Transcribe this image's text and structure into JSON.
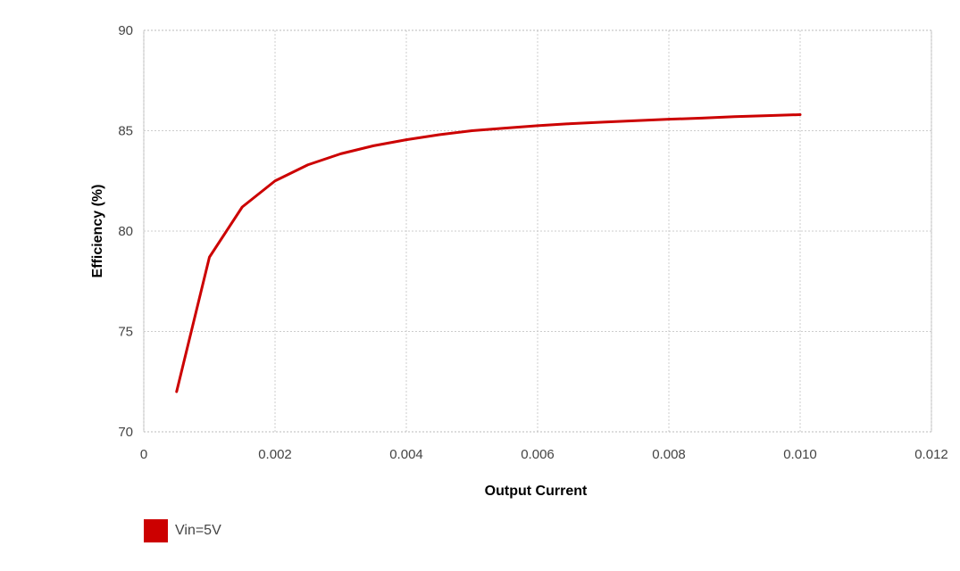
{
  "chart_data": {
    "type": "line",
    "title": "",
    "xlabel": "Output Current",
    "ylabel": "Efficiency (%)",
    "xlim": [
      0,
      0.012
    ],
    "ylim": [
      70,
      90
    ],
    "xticks": [
      "0",
      "0.002",
      "0.004",
      "0.006",
      "0.008",
      "0.010",
      "0.012"
    ],
    "yticks": [
      "70",
      "75",
      "80",
      "85",
      "90"
    ],
    "grid": true,
    "legend_position": "bottom-left",
    "series": [
      {
        "name": "Vin=5V",
        "color": "#cc0000",
        "x": [
          0.0005,
          0.001,
          0.0015,
          0.002,
          0.0025,
          0.003,
          0.0035,
          0.004,
          0.0045,
          0.005,
          0.0055,
          0.006,
          0.0065,
          0.007,
          0.0075,
          0.008,
          0.0085,
          0.009,
          0.0095,
          0.01
        ],
        "y": [
          72.0,
          78.7,
          81.2,
          82.5,
          83.3,
          83.85,
          84.25,
          84.55,
          84.8,
          85.0,
          85.13,
          85.25,
          85.35,
          85.43,
          85.5,
          85.57,
          85.63,
          85.7,
          85.75,
          85.8
        ]
      }
    ]
  }
}
